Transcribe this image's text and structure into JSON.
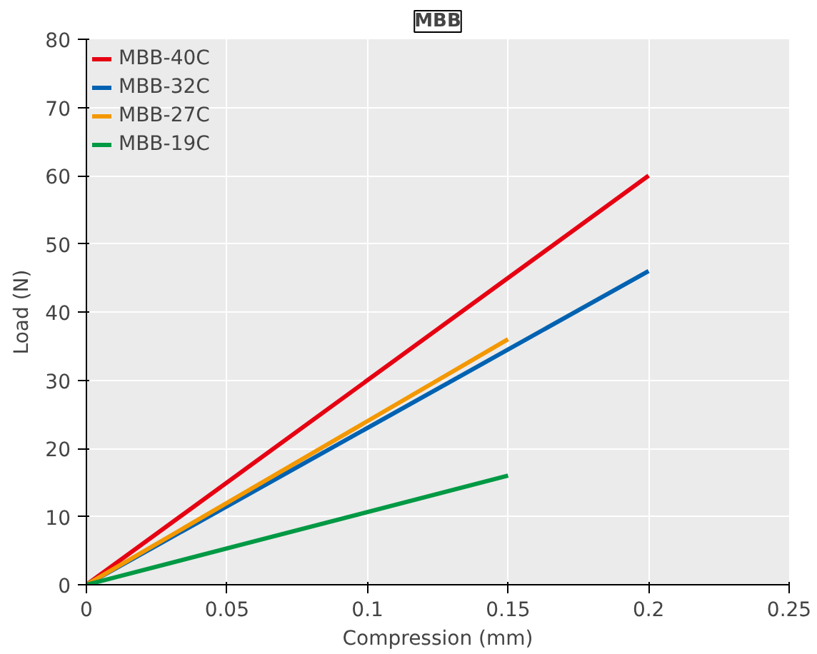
{
  "chart_data": {
    "type": "line",
    "title": "MBB",
    "xlabel": "Compression (mm)",
    "ylabel": "Load (N)",
    "series": [
      {
        "name": "MBB-40C",
        "color": "#e60012",
        "x": [
          0,
          0.2
        ],
        "values": [
          0,
          60
        ]
      },
      {
        "name": "MBB-32C",
        "color": "#0062b1",
        "x": [
          0,
          0.2
        ],
        "values": [
          0,
          46
        ]
      },
      {
        "name": "MBB-27C",
        "color": "#f39800",
        "x": [
          0,
          0.15
        ],
        "values": [
          0,
          36
        ]
      },
      {
        "name": "MBB-19C",
        "color": "#009944",
        "x": [
          0,
          0.15
        ],
        "values": [
          0,
          16
        ]
      }
    ],
    "xlim": [
      0,
      0.25
    ],
    "xticks": [
      0,
      {
        "value": 0.05,
        "label": "0.05"
      },
      {
        "value": 0.1,
        "label": "0.1"
      },
      {
        "value": 0.15,
        "label": "0.15"
      },
      {
        "value": 0.2,
        "label": "0.2"
      },
      {
        "value": 0.25,
        "label": "0.25"
      }
    ],
    "ylim": [
      0,
      80
    ],
    "yticks": [
      0,
      10,
      20,
      30,
      40,
      50,
      60,
      70,
      80
    ],
    "grid": true,
    "legend": "top left",
    "marker": "none",
    "line_style": "solid"
  }
}
